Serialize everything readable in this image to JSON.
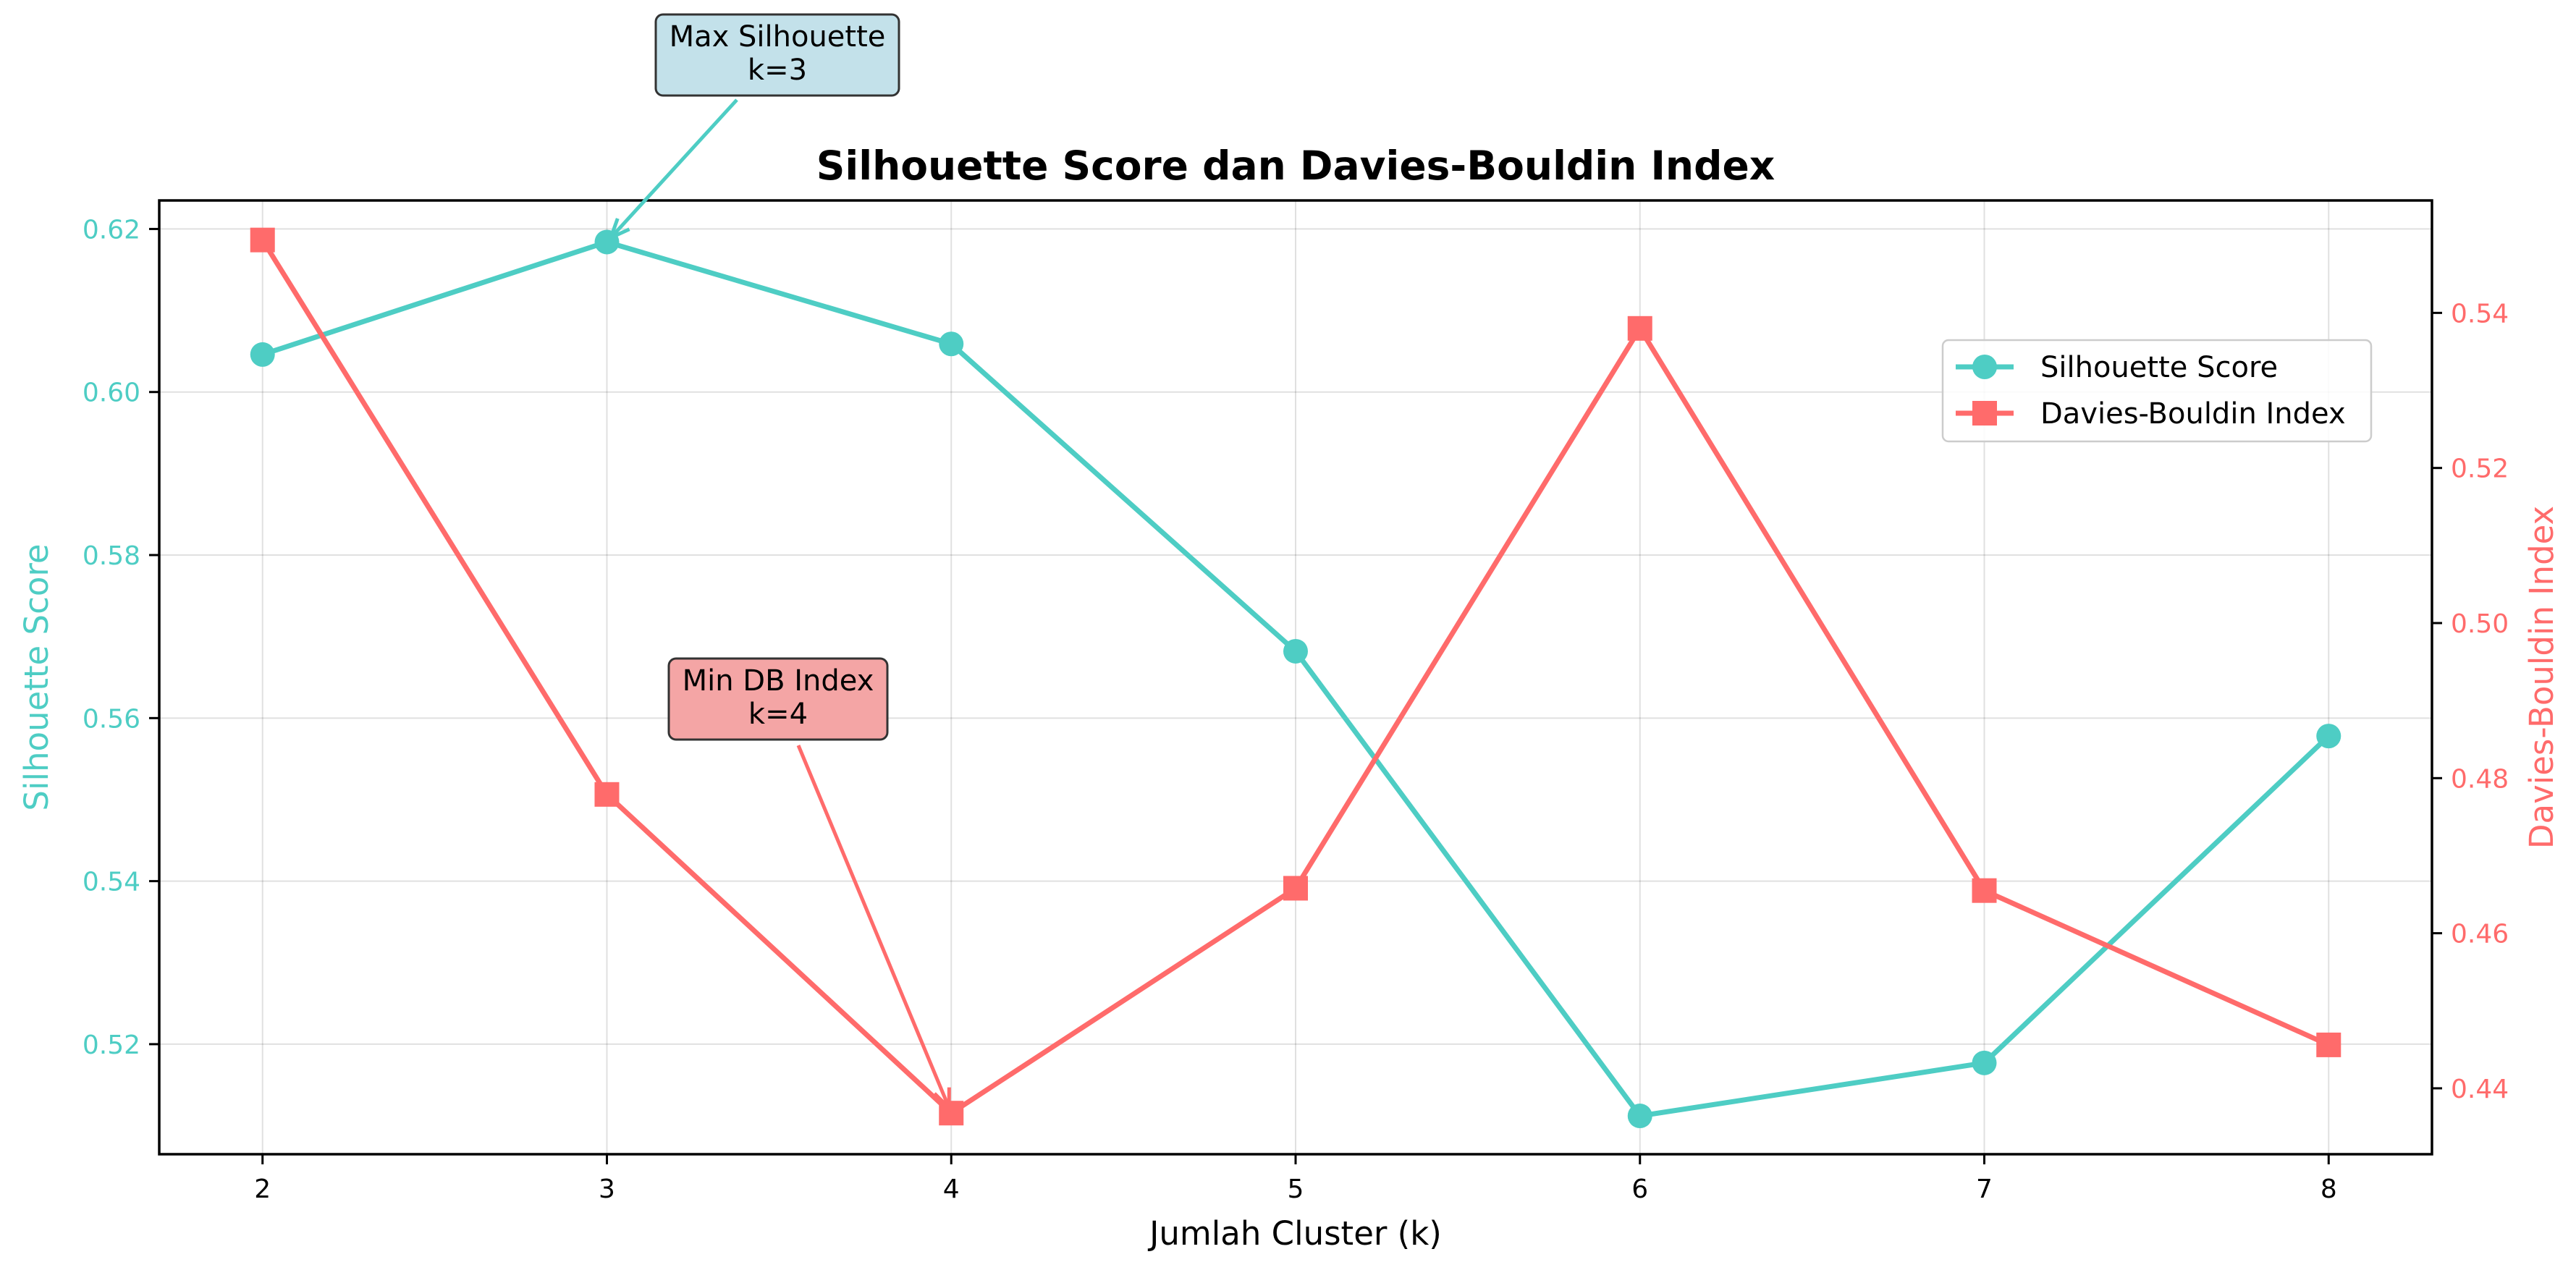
{
  "chart_data": {
    "type": "line",
    "title": "Silhouette Score dan Davies-Bouldin Index",
    "xlabel": "Jumlah Cluster (k)",
    "ylabel_left": "Silhouette Score",
    "ylabel_right": "Davies-Bouldin Index",
    "x": [
      2,
      3,
      4,
      5,
      6,
      7,
      8
    ],
    "x_ticks": [
      "2",
      "3",
      "4",
      "5",
      "6",
      "7",
      "8"
    ],
    "xlim": [
      1.7,
      8.3
    ],
    "ylim_left": [
      0.5065,
      0.6235
    ],
    "ylim_right": [
      0.4315,
      0.5545
    ],
    "y_ticks_left": [
      "0.52",
      "0.54",
      "0.56",
      "0.58",
      "0.60",
      "0.62"
    ],
    "y_ticks_right": [
      "0.44",
      "0.46",
      "0.48",
      "0.50",
      "0.52",
      "0.54"
    ],
    "grid": true,
    "legend_position": "upper-right",
    "series": [
      {
        "name": "Silhouette Score",
        "axis": "left",
        "marker": "circle",
        "color": "#4ECDC4",
        "values": [
          0.6046,
          0.6184,
          0.6059,
          0.5682,
          0.5112,
          0.5177,
          0.5578
        ]
      },
      {
        "name": "Davies-Bouldin Index",
        "axis": "right",
        "marker": "square",
        "color": "#FF6B6B",
        "values": [
          0.5494,
          0.4779,
          0.4368,
          0.4658,
          0.538,
          0.4655,
          0.4456
        ]
      }
    ],
    "annotations": [
      {
        "lines": [
          "Max Silhouette",
          "k=3"
        ],
        "target_x": 3,
        "target_series": 0,
        "fill": "#C3E1EA"
      },
      {
        "lines": [
          "Min DB Index",
          "k=4"
        ],
        "target_x": 4,
        "target_series": 1,
        "fill": "#F4A5A5"
      }
    ]
  }
}
